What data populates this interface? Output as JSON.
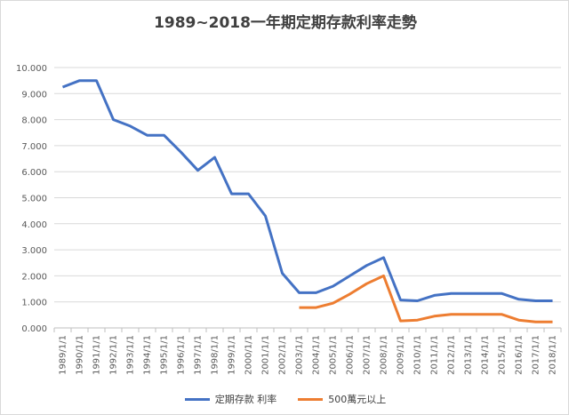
{
  "chart_data": {
    "type": "line",
    "title": "1989~2018一年期定期存款利率走勢",
    "xlabel": "",
    "ylabel": "",
    "ylim": [
      0,
      10
    ],
    "yticks": [
      "0.000",
      "1.000",
      "2.000",
      "3.000",
      "4.000",
      "5.000",
      "6.000",
      "7.000",
      "8.000",
      "9.000",
      "10.000"
    ],
    "grid": true,
    "legend_position": "bottom",
    "categories": [
      "1989/1/1",
      "1990/1/1",
      "1991/1/1",
      "1992/1/1",
      "1993/1/1",
      "1994/1/1",
      "1995/1/1",
      "1996/1/1",
      "1997/1/1",
      "1998/1/1",
      "1999/1/1",
      "2000/1/1",
      "2001/1/1",
      "2002/1/1",
      "2003/1/1",
      "2004/1/1",
      "2005/1/1",
      "2006/1/1",
      "2007/1/1",
      "2008/1/1",
      "2009/1/1",
      "2010/1/1",
      "2011/1/1",
      "2012/1/1",
      "2013/1/1",
      "2014/1/1",
      "2015/1/1",
      "2016/1/1",
      "2017/1/1",
      "2018/1/1"
    ],
    "series": [
      {
        "name": "定期存款 利率",
        "color": "#4472c4",
        "values": [
          9.25,
          9.5,
          9.5,
          8.0,
          7.75,
          7.4,
          7.4,
          6.75,
          6.05,
          6.55,
          5.15,
          5.15,
          4.3,
          2.1,
          1.35,
          1.35,
          1.6,
          2.0,
          2.4,
          2.7,
          1.07,
          1.04,
          1.25,
          1.32,
          1.32,
          1.32,
          1.32,
          1.1,
          1.04,
          1.04
        ]
      },
      {
        "name": "500萬元以上",
        "color": "#ed7d31",
        "values": [
          null,
          null,
          null,
          null,
          null,
          null,
          null,
          null,
          null,
          null,
          null,
          null,
          null,
          null,
          0.78,
          0.78,
          0.95,
          1.3,
          1.7,
          2.0,
          0.27,
          0.3,
          0.45,
          0.52,
          0.52,
          0.52,
          0.52,
          0.3,
          0.23,
          0.23
        ]
      }
    ]
  }
}
